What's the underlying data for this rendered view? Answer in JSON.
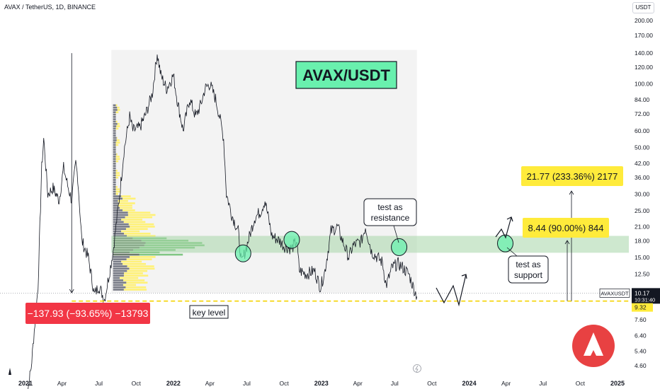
{
  "header": {
    "symbol": "AVAX / TetherUS, 1D, BINANCE",
    "currency": "USDT"
  },
  "chart_data": {
    "type": "line",
    "title": "AVAX/USDT",
    "x_range": [
      "2021-01",
      "2025-01"
    ],
    "y_scale": "log",
    "y_ticks": [
      "200.00",
      "170.00",
      "140.00",
      "120.00",
      "100.00",
      "84.00",
      "72.00",
      "60.00",
      "50.00",
      "42.00",
      "36.00",
      "30.00",
      "25.00",
      "21.00",
      "18.00",
      "15.00",
      "12.50",
      "10.17",
      "9.32",
      "7.60",
      "6.40",
      "5.40",
      "4.60"
    ],
    "x_ticks": [
      "2021",
      "Apr",
      "Jul",
      "Oct",
      "2022",
      "Apr",
      "Jul",
      "Oct",
      "2023",
      "Apr",
      "Jul",
      "Oct",
      "2024",
      "Apr",
      "Jul",
      "Oct",
      "2025"
    ],
    "series": [
      {
        "values": [
          [
            "2021-01-01",
            3.0
          ],
          [
            "2021-01-15",
            4.5
          ],
          [
            "2021-02-01",
            11
          ],
          [
            "2021-02-10",
            40
          ],
          [
            "2021-02-15",
            55
          ],
          [
            "2021-02-25",
            30
          ],
          [
            "2021-03-10",
            32
          ],
          [
            "2021-03-25",
            28
          ],
          [
            "2021-04-05",
            40
          ],
          [
            "2021-04-15",
            33
          ],
          [
            "2021-04-25",
            28
          ],
          [
            "2021-05-05",
            42
          ],
          [
            "2021-05-10",
            36
          ],
          [
            "2021-05-20",
            18
          ],
          [
            "2021-06-05",
            15
          ],
          [
            "2021-06-20",
            10
          ],
          [
            "2021-07-01",
            11
          ],
          [
            "2021-07-15",
            9.5
          ],
          [
            "2021-07-25",
            12
          ],
          [
            "2021-08-05",
            16
          ],
          [
            "2021-08-20",
            28
          ],
          [
            "2021-09-01",
            48
          ],
          [
            "2021-09-15",
            70
          ],
          [
            "2021-09-23",
            60
          ],
          [
            "2021-10-10",
            62
          ],
          [
            "2021-10-25",
            72
          ],
          [
            "2021-11-10",
            90
          ],
          [
            "2021-11-22",
            140
          ],
          [
            "2021-12-01",
            110
          ],
          [
            "2021-12-15",
            95
          ],
          [
            "2022-01-01",
            110
          ],
          [
            "2022-01-10",
            85
          ],
          [
            "2022-01-25",
            60
          ],
          [
            "2022-02-10",
            85
          ],
          [
            "2022-02-25",
            70
          ],
          [
            "2022-03-10",
            80
          ],
          [
            "2022-03-20",
            95
          ],
          [
            "2022-04-01",
            100
          ],
          [
            "2022-04-15",
            85
          ],
          [
            "2022-04-25",
            70
          ],
          [
            "2022-05-05",
            55
          ],
          [
            "2022-05-12",
            30
          ],
          [
            "2022-05-25",
            24
          ],
          [
            "2022-06-10",
            20
          ],
          [
            "2022-06-18",
            14
          ],
          [
            "2022-07-01",
            17
          ],
          [
            "2022-07-20",
            23
          ],
          [
            "2022-08-05",
            25
          ],
          [
            "2022-08-15",
            28
          ],
          [
            "2022-09-01",
            19
          ],
          [
            "2022-09-20",
            18
          ],
          [
            "2022-10-01",
            17
          ],
          [
            "2022-10-20",
            16.5
          ],
          [
            "2022-11-01",
            18
          ],
          [
            "2022-11-08",
            13
          ],
          [
            "2022-11-25",
            12.5
          ],
          [
            "2022-12-15",
            13
          ],
          [
            "2022-12-30",
            10.8
          ],
          [
            "2023-01-10",
            13
          ],
          [
            "2023-01-25",
            20
          ],
          [
            "2023-02-10",
            21
          ],
          [
            "2023-02-20",
            18.5
          ],
          [
            "2023-03-10",
            15
          ],
          [
            "2023-03-20",
            17
          ],
          [
            "2023-04-10",
            18
          ],
          [
            "2023-04-20",
            21
          ],
          [
            "2023-05-05",
            16
          ],
          [
            "2023-06-01",
            14.2
          ],
          [
            "2023-06-10",
            11
          ],
          [
            "2023-06-25",
            13.5
          ],
          [
            "2023-07-10",
            14
          ],
          [
            "2023-07-20",
            13.5
          ],
          [
            "2023-08-05",
            12.5
          ],
          [
            "2023-08-15",
            11
          ],
          [
            "2023-08-25",
            9.8
          ]
        ]
      }
    ],
    "current_price": {
      "label": "AVAXUSDT",
      "value": "10.17",
      "countdown": "10:31:40"
    },
    "key_level_value": "9.32",
    "annotations": {
      "title_box": "AVAX/USDT",
      "drawdown": "−137.93 (−93.65%) −13793",
      "key_level": "key level",
      "resistance": "test as resistance",
      "support": "test as support",
      "target1": "8.44 (90.00%) 844",
      "target2": "21.77 (233.36%) 2177"
    },
    "colors": {
      "zone": "#a5d6a7",
      "yellow": "#ffeb3b",
      "red": "#f23645",
      "title_bg": "#69f0ae",
      "profile_gray": "#787b86",
      "profile_yellow": "#fff176",
      "profile_green": "#81c784",
      "avax_red": "#e84142"
    }
  }
}
